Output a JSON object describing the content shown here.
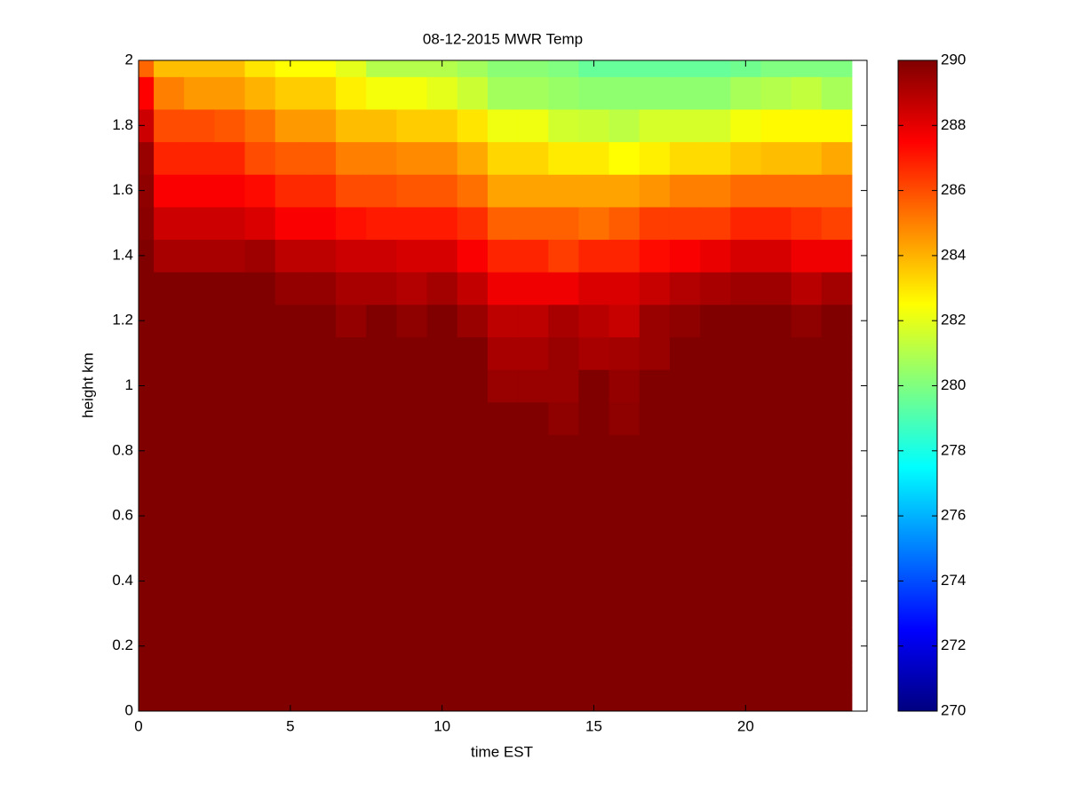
{
  "chart_data": {
    "type": "heatmap",
    "title": "08-12-2015 MWR Temp",
    "x_label": "time EST",
    "y_label": "height km",
    "colormap": "jet",
    "x": [
      0,
      1,
      2,
      3,
      4,
      5,
      6,
      7,
      8,
      9,
      10,
      11,
      12,
      13,
      14,
      15,
      16,
      17,
      18,
      19,
      20,
      21,
      22,
      23
    ],
    "y": [
      0,
      0.1,
      0.2,
      0.3,
      0.4,
      0.5,
      0.6,
      0.7,
      0.8,
      0.9,
      1,
      1.1,
      1.2,
      1.3,
      1.4,
      1.5,
      1.6,
      1.7,
      1.8,
      1.9,
      2
    ],
    "z": [
      [
        290,
        290,
        290,
        290,
        290,
        290,
        290,
        290,
        290,
        290,
        290,
        290,
        290,
        290,
        290,
        290,
        290,
        290,
        290,
        290,
        290,
        290,
        290,
        290
      ],
      [
        290,
        290,
        290,
        290,
        290,
        290,
        290,
        290,
        290,
        290,
        290,
        290,
        290,
        290,
        290,
        290,
        290,
        290,
        290,
        290,
        290,
        290,
        290,
        290
      ],
      [
        290,
        290,
        290,
        290,
        290,
        290,
        290,
        290,
        290,
        290,
        290,
        290,
        290,
        290,
        290,
        290,
        290,
        290,
        290,
        290,
        290,
        290,
        290,
        290
      ],
      [
        290,
        290,
        290,
        290,
        290,
        290,
        290,
        290,
        290,
        290,
        290,
        290,
        290,
        290,
        290,
        290,
        290,
        290,
        290,
        290,
        290,
        290,
        290,
        290
      ],
      [
        290,
        290,
        290,
        290,
        290,
        290,
        290,
        290,
        290,
        290,
        290,
        290,
        290,
        290,
        290,
        290,
        290,
        290,
        290,
        290,
        290,
        290,
        290,
        290
      ],
      [
        290,
        290,
        290,
        290,
        290,
        290,
        290,
        290,
        290,
        290,
        290,
        290,
        290,
        290,
        290,
        290,
        290,
        290,
        290,
        290,
        290,
        290,
        290,
        290
      ],
      [
        290,
        290,
        290,
        290,
        290,
        290,
        290,
        290,
        290,
        290,
        290,
        290,
        290,
        290,
        290,
        290,
        290,
        290,
        290,
        290,
        290,
        290,
        290,
        290
      ],
      [
        290,
        290,
        290,
        290,
        290,
        290,
        290,
        290,
        290,
        290,
        290,
        290,
        290,
        290,
        290,
        290,
        290,
        290,
        290,
        290,
        290,
        290,
        290,
        290
      ],
      [
        290,
        290,
        290,
        290,
        290,
        290,
        290,
        290,
        290,
        290,
        290,
        290,
        290,
        290,
        290,
        290,
        290,
        290,
        290,
        290,
        290,
        290,
        290,
        290
      ],
      [
        290,
        290,
        290,
        290,
        290,
        290,
        290,
        290,
        290,
        290,
        290,
        290,
        290,
        290,
        289.7,
        290,
        289.7,
        290,
        290,
        290,
        290,
        290,
        290,
        290
      ],
      [
        290,
        290,
        290,
        290,
        290,
        290,
        290,
        290,
        290,
        290,
        290,
        290,
        289.5,
        289.5,
        289.5,
        290,
        289.6,
        290,
        290,
        290,
        290,
        290,
        290,
        290
      ],
      [
        290,
        290,
        290,
        290,
        290,
        290,
        290,
        290,
        290,
        290,
        290,
        290,
        289.2,
        289.2,
        289.5,
        289.2,
        289.3,
        289.5,
        290,
        290,
        290,
        290,
        290,
        290
      ],
      [
        290,
        290,
        290,
        290,
        290,
        290,
        290,
        289.6,
        290,
        289.7,
        290,
        289.5,
        288.8,
        288.8,
        289.2,
        288.9,
        288.6,
        289.5,
        289.7,
        290,
        290,
        290,
        289.7,
        290
      ],
      [
        290,
        290,
        290,
        290,
        290,
        289.6,
        289.6,
        289.2,
        289.2,
        289,
        289.3,
        288.7,
        287.8,
        287.8,
        287.8,
        288.2,
        288.2,
        288.6,
        289,
        289.2,
        289.4,
        289.4,
        288.9,
        289.3
      ],
      [
        290,
        289.2,
        289.2,
        289.2,
        289.4,
        288.8,
        288.8,
        288.5,
        288.5,
        288.3,
        288.3,
        287.6,
        286.8,
        286.8,
        286.3,
        286.8,
        286.8,
        287.3,
        287.6,
        287.9,
        288.3,
        288.3,
        287.8,
        287.8
      ],
      [
        289.8,
        288.5,
        288.5,
        288.5,
        288.2,
        287.6,
        287.6,
        287.2,
        287,
        287,
        287,
        286.6,
        285.6,
        285.6,
        285.6,
        285.3,
        285.7,
        286.3,
        286.3,
        286.3,
        286.8,
        286.8,
        286.5,
        286.2
      ],
      [
        289.7,
        287.6,
        287.6,
        287.6,
        287.3,
        286.7,
        286.7,
        286,
        286,
        285.8,
        285.8,
        285.3,
        284.3,
        284.3,
        284.3,
        284.3,
        284.3,
        284.6,
        285,
        285,
        285.4,
        285.4,
        285.4,
        285.4
      ],
      [
        289.5,
        286.8,
        286.8,
        286.8,
        286,
        285.7,
        285.7,
        285,
        285,
        284.8,
        284.8,
        284.2,
        283.3,
        283.3,
        282.9,
        282.9,
        282.5,
        282.8,
        283.2,
        283.2,
        283.6,
        283.8,
        283.8,
        284.2
      ],
      [
        288.5,
        286,
        286,
        285.8,
        285.3,
        284.5,
        284.5,
        283.8,
        283.8,
        283.5,
        283.5,
        283,
        282.2,
        282.2,
        281.6,
        281.5,
        281.2,
        281.7,
        281.7,
        281.7,
        282.3,
        282.6,
        282.6,
        282.6
      ],
      [
        287.5,
        285,
        284.5,
        284.5,
        284,
        283.5,
        283.5,
        282.8,
        282.3,
        282.3,
        282,
        281.5,
        280.7,
        280.7,
        280.5,
        280.3,
        280.3,
        280.3,
        280.3,
        280.3,
        280.8,
        281,
        281.3,
        280.8
      ],
      [
        285.5,
        283.8,
        283.8,
        283.8,
        283,
        282.5,
        282.5,
        282,
        281,
        281,
        281,
        280.7,
        280.2,
        280.2,
        280,
        279.5,
        279.5,
        279.5,
        279.5,
        279.5,
        279.7,
        280,
        280,
        280
      ]
    ],
    "xlim": [
      0,
      24
    ],
    "xticks": [
      0,
      5,
      10,
      15,
      20
    ],
    "ylim": [
      0,
      2
    ],
    "yticks": [
      0,
      0.2,
      0.4,
      0.6,
      0.8,
      1,
      1.2,
      1.4,
      1.6,
      1.8,
      2
    ],
    "clim": [
      270,
      290
    ],
    "cticks": [
      270,
      272,
      274,
      276,
      278,
      280,
      282,
      284,
      286,
      288,
      290
    ]
  }
}
